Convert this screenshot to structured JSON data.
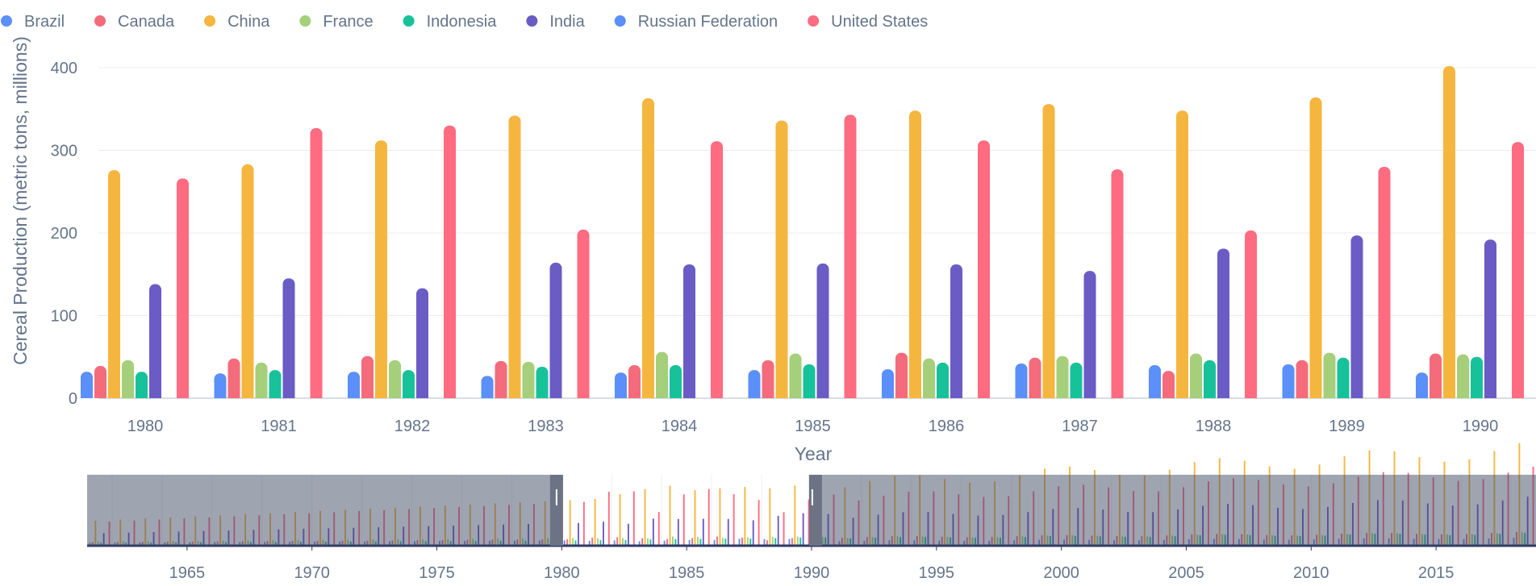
{
  "chart_data": {
    "type": "bar",
    "title": "",
    "xlabel": "Year",
    "ylabel": "Cereal Production (metric tons, millions)",
    "ylim": [
      0,
      400
    ],
    "yticks": [
      0,
      100,
      200,
      300,
      400
    ],
    "grid": true,
    "legend_position": "top-left",
    "categories": [
      "1980",
      "1981",
      "1982",
      "1983",
      "1984",
      "1985",
      "1986",
      "1987",
      "1988",
      "1989",
      "1990"
    ],
    "series": [
      {
        "name": "Brazil",
        "color": "#5b8ff9",
        "values": [
          32,
          30,
          32,
          27,
          31,
          34,
          35,
          42,
          40,
          41,
          31
        ]
      },
      {
        "name": "Canada",
        "color": "#f46b7c",
        "values": [
          39,
          48,
          51,
          45,
          40,
          46,
          55,
          49,
          33,
          46,
          54
        ]
      },
      {
        "name": "China",
        "color": "#f5b63f",
        "values": [
          276,
          283,
          312,
          342,
          363,
          336,
          348,
          356,
          348,
          364,
          402
        ]
      },
      {
        "name": "France",
        "color": "#a5cf7b",
        "values": [
          46,
          43,
          46,
          44,
          56,
          54,
          48,
          51,
          54,
          55,
          53
        ]
      },
      {
        "name": "Indonesia",
        "color": "#17c29a",
        "values": [
          32,
          34,
          34,
          38,
          40,
          41,
          43,
          43,
          46,
          49,
          50
        ]
      },
      {
        "name": "India",
        "color": "#6b5bc4",
        "values": [
          138,
          145,
          133,
          164,
          162,
          163,
          162,
          154,
          181,
          197,
          192
        ]
      },
      {
        "name": "Russian Federation",
        "color": "#5b8ff9",
        "values": [
          0,
          0,
          0,
          0,
          0,
          0,
          0,
          0,
          0,
          0,
          0
        ]
      },
      {
        "name": "United States",
        "color": "#ff6b80",
        "values": [
          266,
          327,
          330,
          204,
          311,
          343,
          312,
          277,
          203,
          280,
          310
        ]
      }
    ],
    "navigator": {
      "x_range": [
        1961,
        2018
      ],
      "x_ticks": [
        "1965",
        "1970",
        "1975",
        "1980",
        "1985",
        "1990",
        "1995",
        "2000",
        "2005",
        "2010",
        "2015"
      ],
      "selected_range": [
        1980,
        1990
      ]
    }
  }
}
